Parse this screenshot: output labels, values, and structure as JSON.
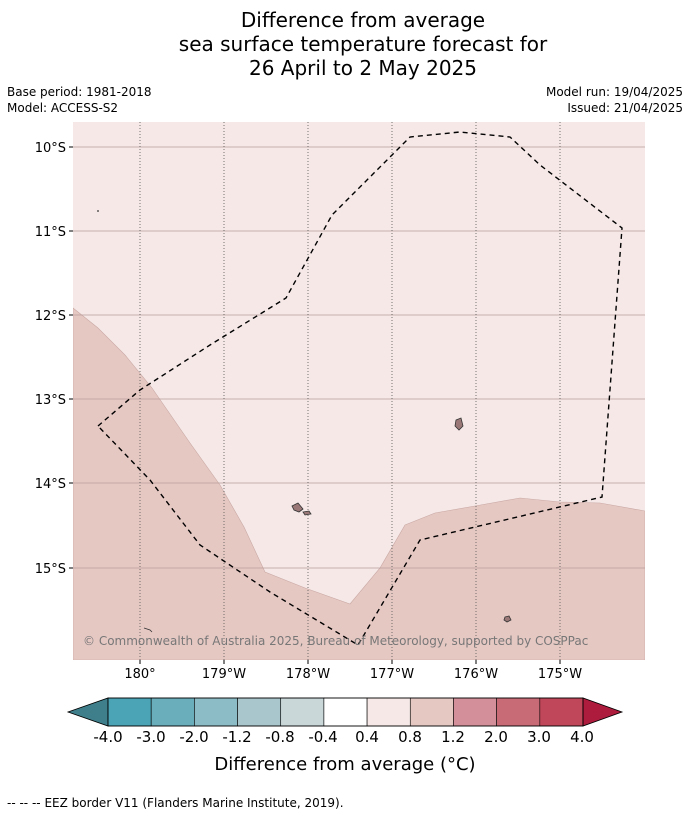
{
  "title": {
    "line1": "Difference from average",
    "line2": "sea surface temperature forecast for",
    "line3": "26 April to 2 May 2025"
  },
  "meta": {
    "base_period": "Base period: 1981-2018",
    "model": "Model: ACCESS-S2",
    "model_run": "Model run: 19/04/2025",
    "issued": "Issued: 21/04/2025"
  },
  "map": {
    "latitude_labels": [
      "10°S",
      "11°S",
      "12°S",
      "13°S",
      "14°S",
      "15°S"
    ],
    "longitude_labels": [
      "180°",
      "179°W",
      "178°W",
      "177°W",
      "176°W",
      "175°W"
    ],
    "copyright": "© Commonwealth of Australia 2025, Bureau of Meteorology, supported by COSPPac",
    "colors": {
      "band_0_4_to_0_8": "#f5e8e7",
      "band_0_8_to_1_2": "#e6c8c3",
      "grid_line": "#b89c98",
      "land": "#a08080"
    }
  },
  "colorbar": {
    "tick_labels": [
      "-4.0",
      "-3.0",
      "-2.0",
      "-1.2",
      "-0.8",
      "-0.4",
      "0.4",
      "0.8",
      "1.2",
      "2.0",
      "3.0",
      "4.0"
    ],
    "colors": [
      "#3e7f8b",
      "#4aa4b5",
      "#6aaebb",
      "#8cbcc6",
      "#a9c6cc",
      "#c9d7d9",
      "#ffffff",
      "#f5e8e7",
      "#e6c8c3",
      "#d4909a",
      "#c96a77",
      "#bf4759",
      "#ad1c3d"
    ],
    "label": "Difference from average (°C)"
  },
  "footer": {
    "eez_legend_symbol": "-- -- --",
    "eez_legend_text": "EEZ border V11 (Flanders Marine Institute, 2019)."
  }
}
